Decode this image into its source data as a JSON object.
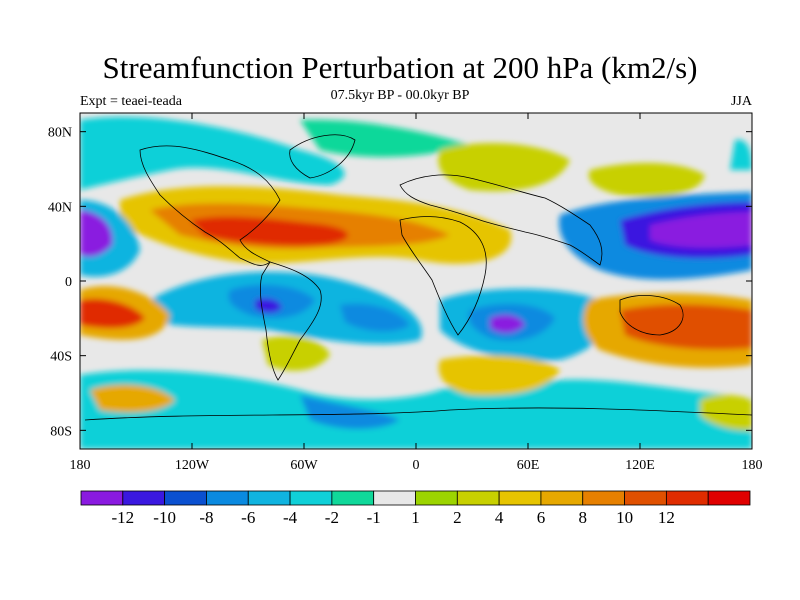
{
  "title": "Streamfunction Perturbation at 200 hPa (km2/s)",
  "subtitle": "07.5kyr BP - 00.0kyr BP",
  "left_label": "Expt = teaei-teada",
  "right_label": "JJA",
  "map": {
    "lon_ticks": [
      "180",
      "120W",
      "60W",
      "0",
      "60E",
      "120E",
      "180"
    ],
    "lat_ticks": [
      "80N",
      "40N",
      "0",
      "40S",
      "80S"
    ],
    "fill_colors": {
      "neg_strong": "#8a1ae0",
      "neg_mid": "#0a6ad0",
      "neg_weak": "#10c4d8",
      "neutral": "#e8e8e8",
      "pos_weak": "#9cd400",
      "pos_mid": "#e6a800",
      "pos_strong": "#e03000"
    }
  },
  "colorbar": {
    "colors": [
      "#8a1ae0",
      "#3a18e0",
      "#0a50d0",
      "#0a8ae0",
      "#10b4e0",
      "#10d0d8",
      "#10d89a",
      "#e8e8e8",
      "#9cd400",
      "#c8d000",
      "#e6c400",
      "#e6a800",
      "#e68000",
      "#e05000",
      "#e02c00",
      "#e00000"
    ],
    "labels": [
      "-12",
      "-10",
      "-8",
      "-6",
      "-4",
      "-2",
      "-1",
      "1",
      "2",
      "4",
      "6",
      "8",
      "10",
      "12"
    ]
  }
}
